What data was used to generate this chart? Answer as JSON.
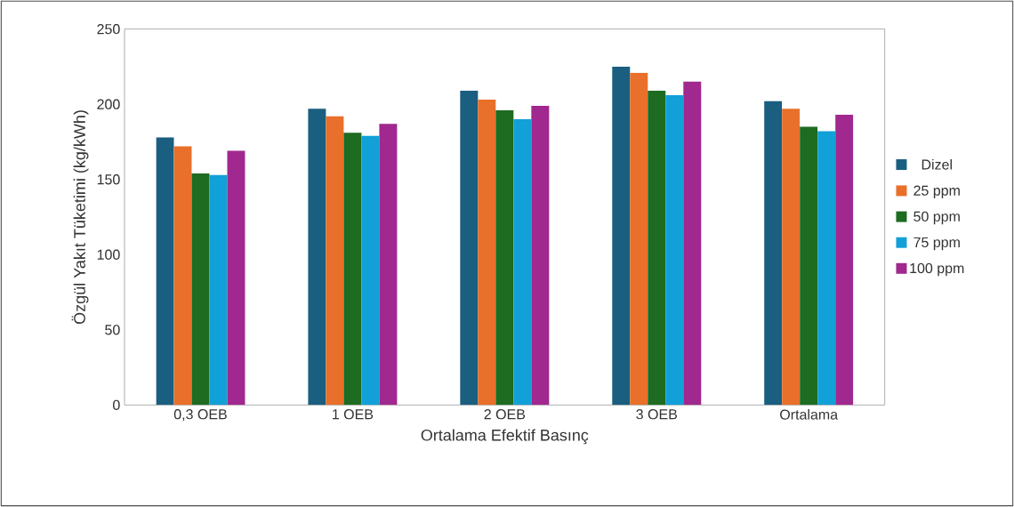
{
  "chart_data": {
    "type": "bar",
    "xlabel": "Ortalama Efektif Basınç",
    "ylabel": "Özgül Yakıt Tüketimi (kg/kWh)",
    "categories": [
      "0,3 OEB",
      "1 OEB",
      "2 OEB",
      "3 OEB",
      "Ortalama"
    ],
    "series": [
      {
        "name": "Dizel",
        "color": "#1a5e80",
        "values": [
          178,
          197,
          209,
          225,
          202
        ]
      },
      {
        "name": "25 ppm",
        "color": "#e8702a",
        "values": [
          172,
          192,
          203,
          221,
          197
        ]
      },
      {
        "name": "50 ppm",
        "color": "#1e6b22",
        "values": [
          154,
          181,
          196,
          209,
          185
        ]
      },
      {
        "name": "75 ppm",
        "color": "#12a0d8",
        "values": [
          153,
          179,
          190,
          206,
          182
        ]
      },
      {
        "name": "100 ppm",
        "color": "#a0288e",
        "values": [
          169,
          187,
          199,
          215,
          193
        ]
      }
    ],
    "ylim": [
      0,
      250
    ],
    "yticks": [
      0,
      50,
      100,
      150,
      200,
      250
    ],
    "grid": false,
    "legend": "right"
  }
}
